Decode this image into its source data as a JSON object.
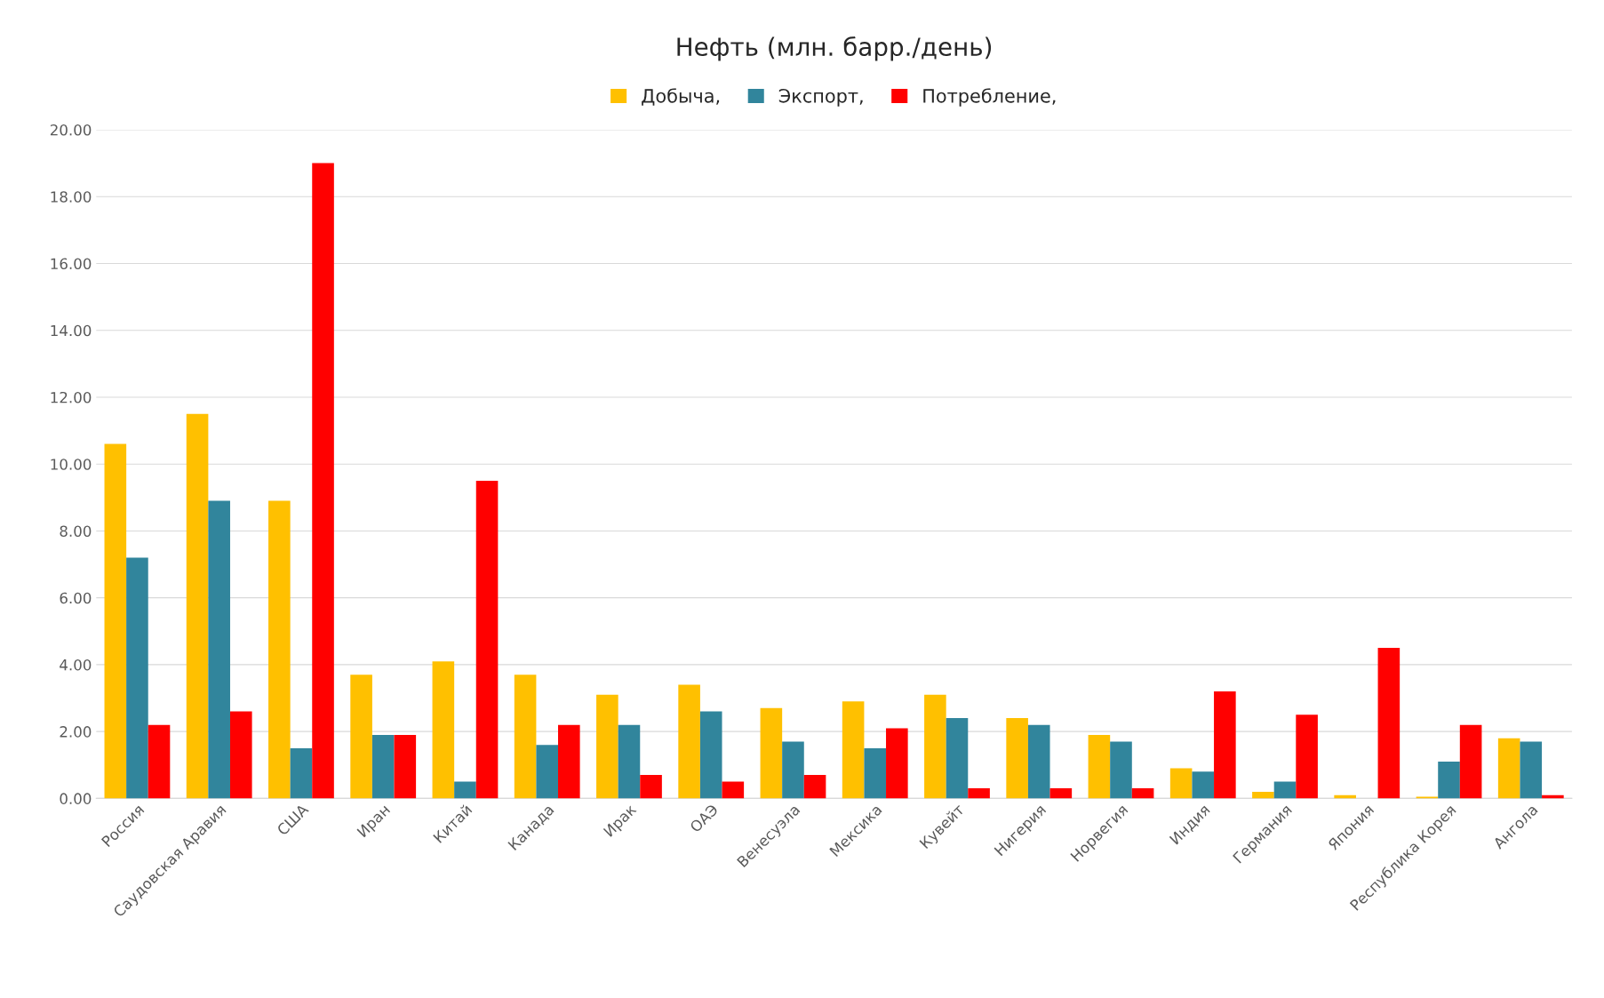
{
  "chart_data": {
    "type": "bar",
    "title": "Нефть (млн. барр./день)",
    "categories": [
      "Россия",
      "Саудовская Аравия",
      "США",
      "Иран",
      "Китай",
      "Канада",
      "Ирак",
      "ОАЭ",
      "Венесуэла",
      "Мексика",
      "Кувейт",
      "Нигерия",
      "Норвегия",
      "Индия",
      "Германия",
      "Япония",
      "Республика Корея",
      "Ангола"
    ],
    "series": [
      {
        "name": "Добыча,",
        "color": "#ffc000",
        "values": [
          10.6,
          11.5,
          8.9,
          3.7,
          4.1,
          3.7,
          3.1,
          3.4,
          2.7,
          2.9,
          3.1,
          2.4,
          1.9,
          0.9,
          0.2,
          0.1,
          0.05,
          1.8
        ]
      },
      {
        "name": "Экспорт,",
        "color": "#31859c",
        "values": [
          7.2,
          8.9,
          1.5,
          1.9,
          0.5,
          1.6,
          2.2,
          2.6,
          1.7,
          1.5,
          2.4,
          2.2,
          1.7,
          0.8,
          0.5,
          null,
          1.1,
          1.7
        ]
      },
      {
        "name": "Потребление,",
        "color": "#ff0000",
        "values": [
          2.2,
          2.6,
          19.0,
          1.9,
          9.5,
          2.2,
          0.7,
          0.5,
          0.7,
          2.1,
          0.3,
          0.3,
          0.3,
          3.2,
          2.5,
          4.5,
          2.2,
          0.1
        ]
      }
    ],
    "ylim": [
      0,
      20
    ],
    "yticks": [
      {
        "value": 0,
        "label": "0.00"
      },
      {
        "value": 2,
        "label": "2.00"
      },
      {
        "value": 4,
        "label": "4.00"
      },
      {
        "value": 6,
        "label": "6.00"
      },
      {
        "value": 8,
        "label": "8.00"
      },
      {
        "value": 10,
        "label": "10.00"
      },
      {
        "value": 12,
        "label": "12.00"
      },
      {
        "value": 14,
        "label": "14.00"
      },
      {
        "value": 16,
        "label": "16.00"
      },
      {
        "value": 18,
        "label": "18.00"
      },
      {
        "value": 20,
        "label": "20.00"
      }
    ],
    "grid": "y",
    "legend": "top"
  }
}
